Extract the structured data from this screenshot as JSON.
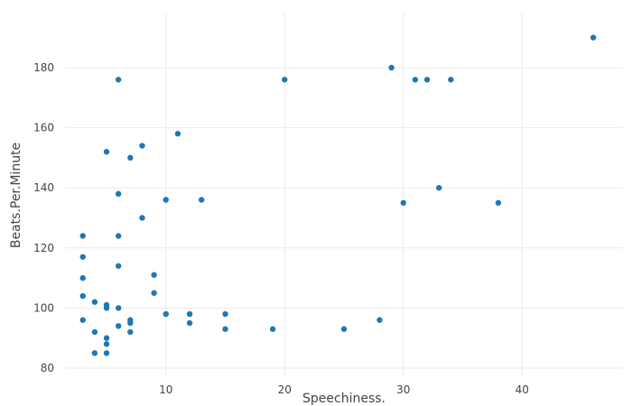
{
  "chart_data": {
    "type": "scatter",
    "title": "",
    "xlabel": "Speechiness.",
    "ylabel": "Beats.Per.Minute",
    "xlim": [
      1.5,
      48.5
    ],
    "ylim": [
      77,
      198
    ],
    "x_ticks": [
      10,
      20,
      30,
      40
    ],
    "y_ticks": [
      80,
      100,
      120,
      140,
      160,
      180
    ],
    "grid": true,
    "marker_color": "#1f77b4",
    "series": [
      {
        "points": [
          {
            "x": 3,
            "y": 124
          },
          {
            "x": 3,
            "y": 117
          },
          {
            "x": 3,
            "y": 110
          },
          {
            "x": 3,
            "y": 104
          },
          {
            "x": 3,
            "y": 96
          },
          {
            "x": 4,
            "y": 102
          },
          {
            "x": 4,
            "y": 92
          },
          {
            "x": 4,
            "y": 85
          },
          {
            "x": 5,
            "y": 152
          },
          {
            "x": 5,
            "y": 101
          },
          {
            "x": 5,
            "y": 100
          },
          {
            "x": 5,
            "y": 90
          },
          {
            "x": 5,
            "y": 88
          },
          {
            "x": 5,
            "y": 85
          },
          {
            "x": 6,
            "y": 176
          },
          {
            "x": 6,
            "y": 138
          },
          {
            "x": 6,
            "y": 124
          },
          {
            "x": 6,
            "y": 114
          },
          {
            "x": 6,
            "y": 100
          },
          {
            "x": 6,
            "y": 94
          },
          {
            "x": 7,
            "y": 150
          },
          {
            "x": 7,
            "y": 96
          },
          {
            "x": 7,
            "y": 95
          },
          {
            "x": 7,
            "y": 92
          },
          {
            "x": 8,
            "y": 154
          },
          {
            "x": 8,
            "y": 130
          },
          {
            "x": 9,
            "y": 111
          },
          {
            "x": 9,
            "y": 105
          },
          {
            "x": 10,
            "y": 136
          },
          {
            "x": 10,
            "y": 98
          },
          {
            "x": 11,
            "y": 158
          },
          {
            "x": 12,
            "y": 98
          },
          {
            "x": 12,
            "y": 95
          },
          {
            "x": 13,
            "y": 136
          },
          {
            "x": 15,
            "y": 98
          },
          {
            "x": 15,
            "y": 93
          },
          {
            "x": 19,
            "y": 93
          },
          {
            "x": 20,
            "y": 176
          },
          {
            "x": 25,
            "y": 93
          },
          {
            "x": 28,
            "y": 96
          },
          {
            "x": 29,
            "y": 180
          },
          {
            "x": 30,
            "y": 135
          },
          {
            "x": 31,
            "y": 176
          },
          {
            "x": 32,
            "y": 176
          },
          {
            "x": 33,
            "y": 140
          },
          {
            "x": 34,
            "y": 176
          },
          {
            "x": 38,
            "y": 135
          },
          {
            "x": 46,
            "y": 190
          }
        ]
      }
    ]
  }
}
